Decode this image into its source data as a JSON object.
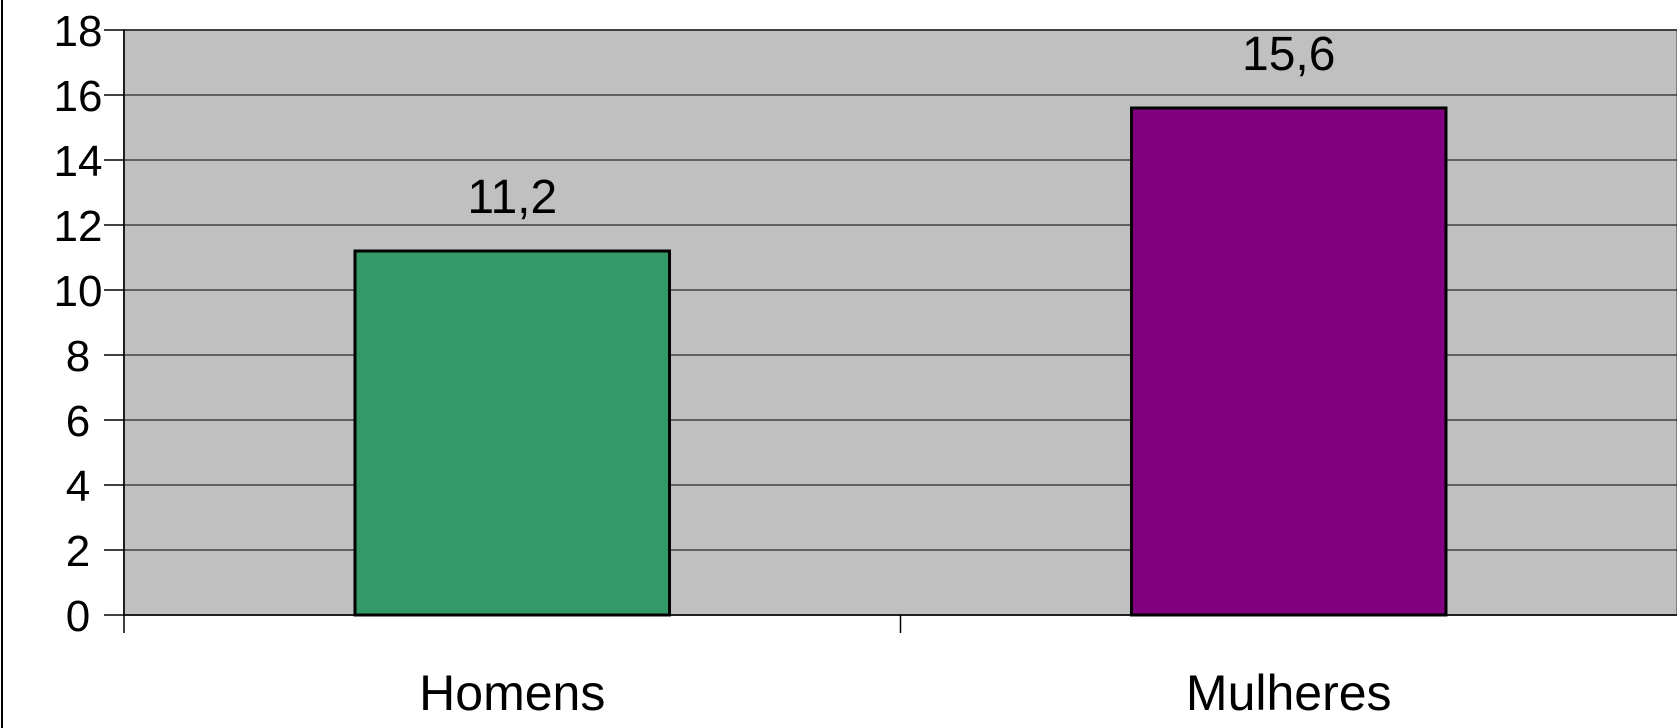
{
  "chart_data": {
    "type": "bar",
    "categories": [
      "Homens",
      "Mulheres"
    ],
    "values": [
      11.2,
      15.6
    ],
    "data_labels": [
      "11,2",
      "15,6"
    ],
    "bar_colors": [
      "#339966",
      "#800080"
    ],
    "plot_background": "#c0c0c0",
    "gridline_color": "#000000",
    "ylim": [
      0,
      18
    ],
    "y_ticks": [
      0,
      2,
      4,
      6,
      8,
      10,
      12,
      14,
      16,
      18
    ],
    "y_tick_labels": [
      "0",
      "2",
      "4",
      "6",
      "8",
      "10",
      "12",
      "14",
      "16",
      "18"
    ],
    "grid": true,
    "legend": "none",
    "title": "",
    "xlabel": "",
    "ylabel": ""
  }
}
